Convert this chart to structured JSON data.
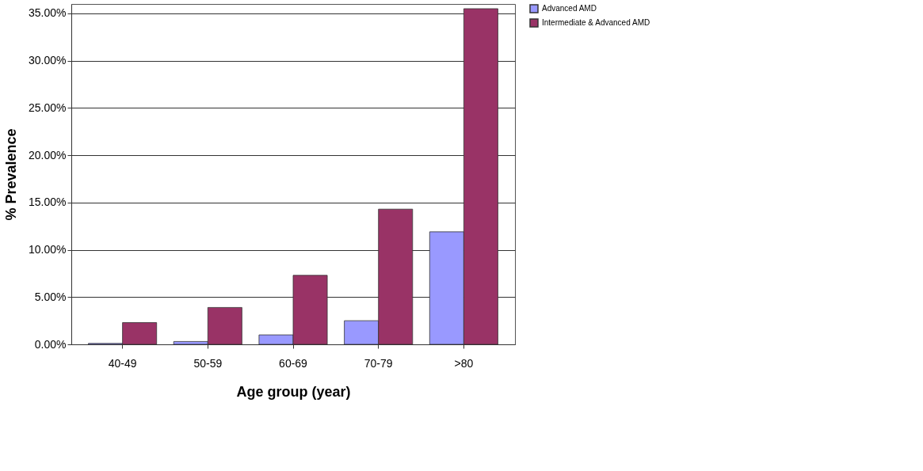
{
  "chart_data": {
    "type": "bar",
    "xlabel": "Age group (year)",
    "ylabel": "% Prevalence",
    "categories": [
      "40-49",
      "50-59",
      "60-69",
      "70-79",
      ">80"
    ],
    "series": [
      {
        "name": "Advanced AMD",
        "color": "#9999ff",
        "values": [
          0.1,
          0.3,
          1.0,
          2.5,
          11.9
        ]
      },
      {
        "name": "Intermediate & Advanced AMD",
        "color": "#993366",
        "values": [
          2.3,
          3.9,
          7.3,
          14.3,
          35.5
        ]
      }
    ],
    "ylim": [
      0,
      36
    ],
    "yticks": [
      {
        "value": 0,
        "label": "0.00%"
      },
      {
        "value": 5,
        "label": "5.00%"
      },
      {
        "value": 10,
        "label": "10.00%"
      },
      {
        "value": 15,
        "label": "15.00%"
      },
      {
        "value": 20,
        "label": "20.00%"
      },
      {
        "value": 25,
        "label": "25.00%"
      },
      {
        "value": 30,
        "label": "30.00%"
      },
      {
        "value": 35,
        "label": "35.00%"
      }
    ],
    "grid": "y",
    "legend": "right"
  }
}
